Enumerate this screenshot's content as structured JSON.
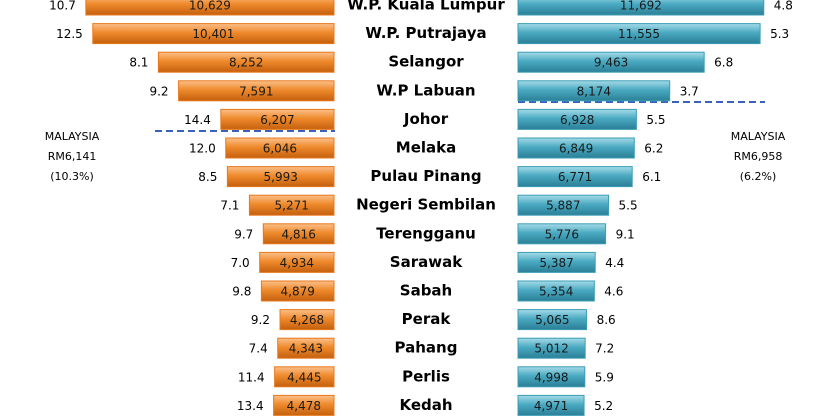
{
  "chart_data": {
    "type": "butterfly",
    "categories": [
      "W.P. Kuala Lumpur",
      "W.P. Putrajaya",
      "Selangor",
      "W.P Labuan",
      "Johor",
      "Melaka",
      "Pulau Pinang",
      "Negeri Sembilan",
      "Terengganu",
      "Sarawak",
      "Sabah",
      "Perak",
      "Pahang",
      "Perlis",
      "Kedah"
    ],
    "xlim": [
      2500,
      12000
    ],
    "series": [
      {
        "side": "left",
        "color": "#e8781c",
        "values": [
          10629,
          10401,
          8252,
          7591,
          6207,
          6046,
          5993,
          5271,
          4816,
          4934,
          4879,
          4268,
          4343,
          4445,
          4478
        ],
        "value_labels": [
          "10,629",
          "10,401",
          "8,252",
          "7,591",
          "6,207",
          "6,046",
          "5,993",
          "5,271",
          "4,816",
          "4,934",
          "4,879",
          "4,268",
          "4,343",
          "4,445",
          "4,478"
        ],
        "growth": {
          "values": [
            10.7,
            12.5,
            8.1,
            9.2,
            14.4,
            12.0,
            8.5,
            7.1,
            9.7,
            7.0,
            9.8,
            9.2,
            7.4,
            11.4,
            13.4
          ],
          "value_labels": [
            "10.7",
            "12.5",
            "8.1",
            "9.2",
            "14.4",
            "12.0",
            "8.5",
            "7.1",
            "9.7",
            "7.0",
            "9.8",
            "9.2",
            "7.4",
            "11.4",
            "13.4"
          ]
        }
      },
      {
        "side": "right",
        "color": "#3b9db6",
        "values": [
          11692,
          11555,
          9463,
          8174,
          6928,
          6849,
          6771,
          5887,
          5776,
          5387,
          5354,
          5065,
          5012,
          4998,
          4971
        ],
        "value_labels": [
          "11,692",
          "11,555",
          "9,463",
          "8,174",
          "6,928",
          "6,849",
          "6,771",
          "5,887",
          "5,776",
          "5,387",
          "5,354",
          "5,065",
          "5,012",
          "4,998",
          "4,971"
        ],
        "growth": {
          "values": [
            4.8,
            5.3,
            6.8,
            3.7,
            5.5,
            6.2,
            6.1,
            5.5,
            9.1,
            4.4,
            4.6,
            8.6,
            7.2,
            5.9,
            5.2
          ],
          "value_labels": [
            "4.8",
            "5.3",
            "6.8",
            "3.7",
            "5.5",
            "6.2",
            "6.1",
            "5.5",
            "9.1",
            "4.4",
            "4.6",
            "8.6",
            "7.2",
            "5.9",
            "5.2"
          ]
        }
      }
    ],
    "annotations": [
      {
        "lines": [
          "MALAYSIA",
          "RM6,141",
          "(10.3%)"
        ]
      },
      {
        "lines": [
          "MALAYSIA",
          "RM6,958",
          "(6.2%)"
        ]
      }
    ]
  }
}
